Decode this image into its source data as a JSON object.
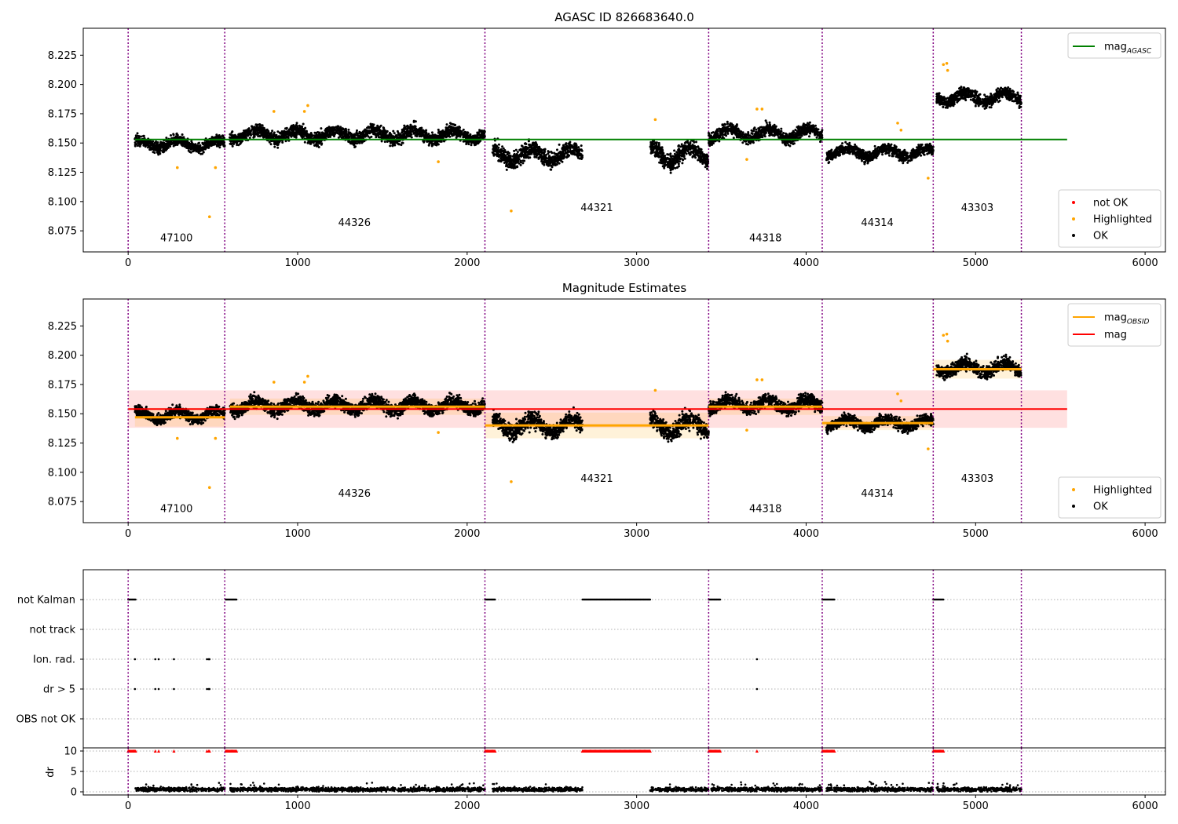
{
  "chart_data": [
    {
      "type": "scatter",
      "title": "AGASC ID 826683640.0",
      "xlabel": "",
      "ylabel": "",
      "xlim": [
        -265,
        6120
      ],
      "ylim": [
        8.057,
        8.248
      ],
      "xticks": [
        0,
        1000,
        2000,
        3000,
        4000,
        5000,
        6000
      ],
      "yticks": [
        8.075,
        8.1,
        8.125,
        8.15,
        8.175,
        8.2,
        8.225
      ],
      "grid": false,
      "legend_upper": {
        "position": "top-right",
        "entries": [
          {
            "label": "mag",
            "sub": "AGASC",
            "color": "#008000",
            "kind": "line"
          }
        ]
      },
      "legend_lower": {
        "position": "bottom-right",
        "entries": [
          {
            "label": "not OK",
            "color": "#ff0000",
            "kind": "dot"
          },
          {
            "label": "Highlighted",
            "color": "#ffa500",
            "kind": "dot"
          },
          {
            "label": "OK",
            "color": "#000000",
            "kind": "dot"
          }
        ]
      },
      "mag_agasc": 8.153,
      "mag_agasc_x": [
        40,
        5540
      ],
      "obs_boundaries": [
        0,
        570,
        2105,
        3425,
        4095,
        4750,
        5270
      ],
      "obs_labels": [
        {
          "id": "47100",
          "x": 285,
          "y": 8.066
        },
        {
          "id": "44326",
          "x": 1335,
          "y": 8.079
        },
        {
          "id": "44321",
          "x": 2765,
          "y": 8.092
        },
        {
          "id": "44318",
          "x": 3760,
          "y": 8.066
        },
        {
          "id": "44314",
          "x": 4420,
          "y": 8.079
        },
        {
          "id": "43303",
          "x": 5010,
          "y": 8.092
        }
      ],
      "ok_segments": [
        {
          "x": [
            40,
            570
          ],
          "mean": 8.149,
          "spread": 0.006
        },
        {
          "x": [
            600,
            2105
          ],
          "mean": 8.157,
          "spread": 0.007
        },
        {
          "x": [
            2150,
            2680
          ],
          "mean": 8.14,
          "spread": 0.009
        },
        {
          "x": [
            3080,
            3425
          ],
          "mean": 8.14,
          "spread": 0.01
        },
        {
          "x": [
            3425,
            4095
          ],
          "mean": 8.158,
          "spread": 0.007
        },
        {
          "x": [
            4120,
            4750
          ],
          "mean": 8.142,
          "spread": 0.006
        },
        {
          "x": [
            4770,
            5270
          ],
          "mean": 8.189,
          "spread": 0.007
        }
      ],
      "highlighted_points": [
        {
          "x": 290,
          "y": 8.129
        },
        {
          "x": 480,
          "y": 8.087
        },
        {
          "x": 515,
          "y": 8.129
        },
        {
          "x": 860,
          "y": 8.177
        },
        {
          "x": 1040,
          "y": 8.177
        },
        {
          "x": 1060,
          "y": 8.182
        },
        {
          "x": 1830,
          "y": 8.134
        },
        {
          "x": 2260,
          "y": 8.092
        },
        {
          "x": 3110,
          "y": 8.17
        },
        {
          "x": 3650,
          "y": 8.136
        },
        {
          "x": 3710,
          "y": 8.179
        },
        {
          "x": 3740,
          "y": 8.179
        },
        {
          "x": 4540,
          "y": 8.167
        },
        {
          "x": 4560,
          "y": 8.161
        },
        {
          "x": 4720,
          "y": 8.12
        },
        {
          "x": 4810,
          "y": 8.217
        },
        {
          "x": 4830,
          "y": 8.218
        },
        {
          "x": 4835,
          "y": 8.212
        }
      ]
    },
    {
      "type": "scatter",
      "title": "Magnitude Estimates",
      "xlabel": "",
      "ylabel": "",
      "xlim": [
        -265,
        6120
      ],
      "ylim": [
        8.057,
        8.248
      ],
      "xticks": [
        0,
        1000,
        2000,
        3000,
        4000,
        5000,
        6000
      ],
      "yticks": [
        8.075,
        8.1,
        8.125,
        8.15,
        8.175,
        8.2,
        8.225
      ],
      "grid": false,
      "legend_upper": {
        "position": "top-right",
        "entries": [
          {
            "label": "mag",
            "sub": "OBSID",
            "color": "#ffa500",
            "kind": "line"
          },
          {
            "label": "mag",
            "sub": "",
            "color": "#ff0000",
            "kind": "line"
          }
        ]
      },
      "legend_lower": {
        "position": "bottom-right",
        "entries": [
          {
            "label": "Highlighted",
            "color": "#ffa500",
            "kind": "dot"
          },
          {
            "label": "OK",
            "color": "#000000",
            "kind": "dot"
          }
        ]
      },
      "mag": 8.154,
      "mag_band": [
        8.138,
        8.17
      ],
      "mag_x": [
        0,
        5540
      ],
      "mag_obsid": [
        {
          "x": [
            40,
            570
          ],
          "value": 8.147,
          "band": [
            8.139,
            8.155
          ]
        },
        {
          "x": [
            600,
            2105
          ],
          "value": 8.156,
          "band": [
            8.149,
            8.163
          ]
        },
        {
          "x": [
            2105,
            3425
          ],
          "value": 8.14,
          "band": [
            8.129,
            8.151
          ]
        },
        {
          "x": [
            3425,
            4095
          ],
          "value": 8.156,
          "band": [
            8.149,
            8.163
          ]
        },
        {
          "x": [
            4095,
            4750
          ],
          "value": 8.142,
          "band": [
            8.136,
            8.148
          ]
        },
        {
          "x": [
            4750,
            5270
          ],
          "value": 8.188,
          "band": [
            8.18,
            8.196
          ]
        }
      ],
      "obs_boundaries": [
        0,
        570,
        2105,
        3425,
        4095,
        4750,
        5270
      ],
      "obs_labels": [
        {
          "id": "47100",
          "x": 285,
          "y": 8.066
        },
        {
          "id": "44326",
          "x": 1335,
          "y": 8.079
        },
        {
          "id": "44321",
          "x": 2765,
          "y": 8.092
        },
        {
          "id": "44318",
          "x": 3760,
          "y": 8.066
        },
        {
          "id": "44314",
          "x": 4420,
          "y": 8.079
        },
        {
          "id": "43303",
          "x": 5010,
          "y": 8.092
        }
      ],
      "ok_segments": [
        {
          "x": [
            40,
            570
          ],
          "mean": 8.149,
          "spread": 0.006
        },
        {
          "x": [
            600,
            2105
          ],
          "mean": 8.157,
          "spread": 0.007
        },
        {
          "x": [
            2150,
            2680
          ],
          "mean": 8.14,
          "spread": 0.009
        },
        {
          "x": [
            3080,
            3425
          ],
          "mean": 8.14,
          "spread": 0.01
        },
        {
          "x": [
            3425,
            4095
          ],
          "mean": 8.158,
          "spread": 0.007
        },
        {
          "x": [
            4120,
            4750
          ],
          "mean": 8.142,
          "spread": 0.006
        },
        {
          "x": [
            4770,
            5270
          ],
          "mean": 8.189,
          "spread": 0.007
        }
      ],
      "highlighted_points": [
        {
          "x": 290,
          "y": 8.129
        },
        {
          "x": 480,
          "y": 8.087
        },
        {
          "x": 515,
          "y": 8.129
        },
        {
          "x": 860,
          "y": 8.177
        },
        {
          "x": 1040,
          "y": 8.177
        },
        {
          "x": 1060,
          "y": 8.182
        },
        {
          "x": 1830,
          "y": 8.134
        },
        {
          "x": 2260,
          "y": 8.092
        },
        {
          "x": 3110,
          "y": 8.17
        },
        {
          "x": 3650,
          "y": 8.136
        },
        {
          "x": 3710,
          "y": 8.179
        },
        {
          "x": 3740,
          "y": 8.179
        },
        {
          "x": 4540,
          "y": 8.167
        },
        {
          "x": 4560,
          "y": 8.161
        },
        {
          "x": 4720,
          "y": 8.12
        },
        {
          "x": 4810,
          "y": 8.217
        },
        {
          "x": 4830,
          "y": 8.218
        },
        {
          "x": 4835,
          "y": 8.212
        }
      ]
    },
    {
      "type": "scatter",
      "title": "",
      "xlabel": "",
      "xlim": [
        -265,
        6120
      ],
      "xticks": [
        0,
        1000,
        2000,
        3000,
        4000,
        5000,
        6000
      ],
      "flag_categories": [
        "not Kalman",
        "not track",
        "Ion. rad.",
        "dr > 5",
        "OBS not OK"
      ],
      "obs_boundaries": [
        0,
        570,
        2105,
        3425,
        4095,
        4750,
        5270
      ],
      "flags": {
        "not Kalman": [
          [
            0,
            45
          ],
          [
            575,
            640
          ],
          [
            2105,
            2165
          ],
          [
            2680,
            3080
          ],
          [
            3425,
            3495
          ],
          [
            4095,
            4170
          ],
          [
            4750,
            4810
          ]
        ],
        "not track": [],
        "Ion. rad.": [
          40,
          160,
          180,
          270,
          465,
          475,
          480,
          3710
        ],
        "dr > 5": [
          40,
          160,
          180,
          270,
          465,
          475,
          480,
          3710
        ],
        "OBS not OK": []
      }
    },
    {
      "type": "scatter",
      "title": "",
      "xlabel": "",
      "ylabel": "dr",
      "xlim": [
        -265,
        6120
      ],
      "ylim": [
        -0.5,
        10.5
      ],
      "xticks": [
        0,
        1000,
        2000,
        3000,
        4000,
        5000,
        6000
      ],
      "yticks": [
        0,
        5,
        10
      ],
      "clipped_value": 10,
      "clipped_ranges": [
        [
          0,
          45
        ],
        [
          575,
          640
        ],
        [
          2105,
          2165
        ],
        [
          2680,
          3080
        ],
        [
          3425,
          3495
        ],
        [
          4095,
          4170
        ],
        [
          4750,
          4810
        ]
      ],
      "clipped_points": [
        160,
        180,
        270,
        465,
        475,
        480,
        3710
      ],
      "dr_typical": 0.6,
      "dr_segments": [
        [
          40,
          570
        ],
        [
          600,
          2105
        ],
        [
          2150,
          2680
        ],
        [
          3080,
          3425
        ],
        [
          3440,
          4095
        ],
        [
          4120,
          4750
        ],
        [
          4770,
          5270
        ]
      ]
    }
  ],
  "colors": {
    "ok": "#000000",
    "highlighted": "#ffa500",
    "not_ok": "#ff0000",
    "agasc": "#008000",
    "obsid": "#ffa500",
    "mag": "#ff0000",
    "boundary": "#800080"
  }
}
